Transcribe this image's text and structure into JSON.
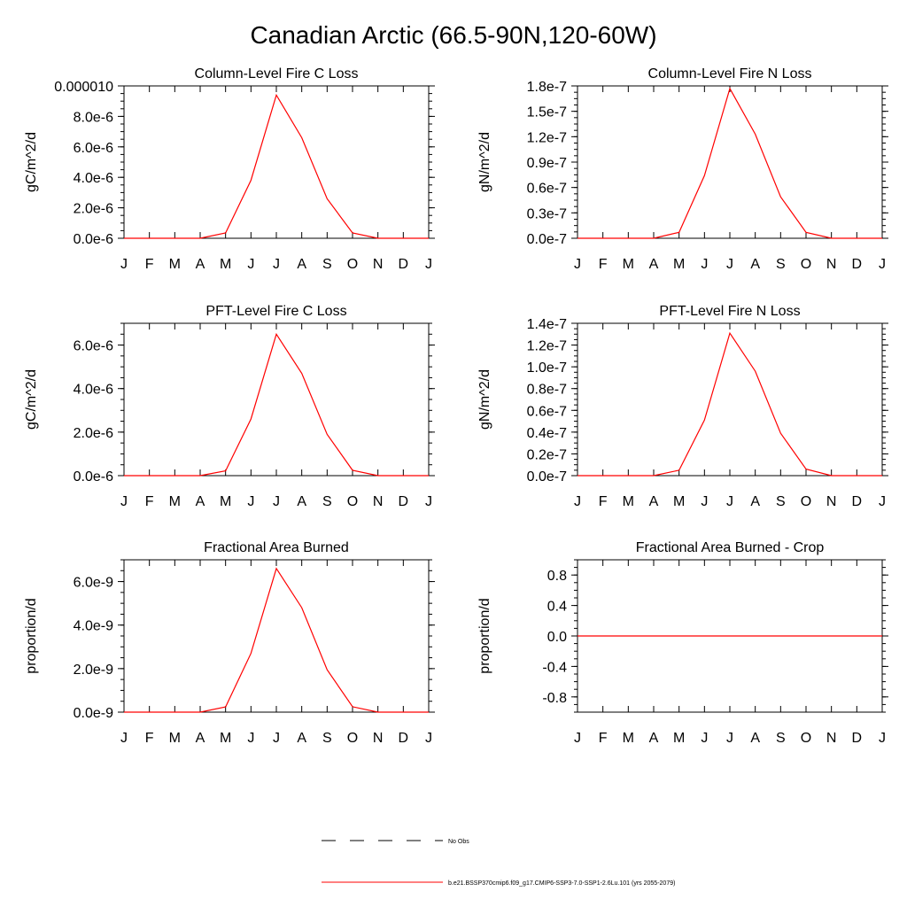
{
  "figure": {
    "title": "Canadian Arctic (66.5-90N,120-60W)"
  },
  "chart_data": [
    {
      "type": "line",
      "title": "Column-Level Fire C Loss",
      "ylabel": "gC/m^2/d",
      "x": [
        "J",
        "F",
        "M",
        "A",
        "M",
        "J",
        "J",
        "A",
        "S",
        "O",
        "N",
        "D",
        "J"
      ],
      "ylim": [
        0,
        1e-05
      ],
      "yticks": [
        0,
        2e-06,
        4e-06,
        6e-06,
        8e-06,
        1e-05
      ],
      "ytick_labels": [
        "0.0e-6",
        "2.0e-6",
        "4.0e-6",
        "6.0e-6",
        "8.0e-6",
        "0.000010"
      ],
      "series": [
        {
          "name": "b.e21.BSSP370cmip6.f09_g17.CMIP6-SSP3-7.0-SSP1-2.6Lu.101 (yrs 2055-2079)",
          "color": "#ff0000",
          "values": [
            0,
            0,
            0,
            0,
            3.5e-07,
            3.8e-06,
            9.4e-06,
            6.6e-06,
            2.6e-06,
            3.5e-07,
            0,
            0,
            0
          ]
        }
      ]
    },
    {
      "type": "line",
      "title": "Column-Level Fire N Loss",
      "ylabel": "gN/m^2/d",
      "x": [
        "J",
        "F",
        "M",
        "A",
        "M",
        "J",
        "J",
        "A",
        "S",
        "O",
        "N",
        "D",
        "J"
      ],
      "ylim": [
        0,
        1.8e-07
      ],
      "yticks": [
        0,
        3e-08,
        6e-08,
        9e-08,
        1.2e-07,
        1.5e-07,
        1.8e-07
      ],
      "ytick_labels": [
        "0.0e-7",
        "0.3e-7",
        "0.6e-7",
        "0.9e-7",
        "1.2e-7",
        "1.5e-7",
        "1.8e-7"
      ],
      "series": [
        {
          "name": "b.e21.BSSP370cmip6.f09_g17.CMIP6-SSP3-7.0-SSP1-2.6Lu.101 (yrs 2055-2079)",
          "color": "#ff0000",
          "values": [
            0,
            0,
            0,
            0,
            7e-09,
            7.4e-08,
            1.77e-07,
            1.23e-07,
            4.9e-08,
            7e-09,
            0,
            0,
            0
          ]
        }
      ]
    },
    {
      "type": "line",
      "title": "PFT-Level Fire C Loss",
      "ylabel": "gC/m^2/d",
      "x": [
        "J",
        "F",
        "M",
        "A",
        "M",
        "J",
        "J",
        "A",
        "S",
        "O",
        "N",
        "D",
        "J"
      ],
      "ylim": [
        0,
        7e-06
      ],
      "yticks": [
        0,
        2e-06,
        4e-06,
        6e-06
      ],
      "ytick_labels": [
        "0.0e-6",
        "2.0e-6",
        "4.0e-6",
        "6.0e-6"
      ],
      "series": [
        {
          "name": "b.e21.BSSP370cmip6.f09_g17.CMIP6-SSP3-7.0-SSP1-2.6Lu.101 (yrs 2055-2079)",
          "color": "#ff0000",
          "values": [
            0,
            0,
            0,
            0,
            2.2e-07,
            2.6e-06,
            6.5e-06,
            4.7e-06,
            1.9e-06,
            2.5e-07,
            0,
            0,
            0
          ]
        }
      ]
    },
    {
      "type": "line",
      "title": "PFT-Level Fire N Loss",
      "ylabel": "gN/m^2/d",
      "x": [
        "J",
        "F",
        "M",
        "A",
        "M",
        "J",
        "J",
        "A",
        "S",
        "O",
        "N",
        "D",
        "J"
      ],
      "ylim": [
        0,
        1.4e-07
      ],
      "yticks": [
        0,
        2e-08,
        4e-08,
        6e-08,
        8e-08,
        1e-07,
        1.2e-07,
        1.4e-07
      ],
      "ytick_labels": [
        "0.0e-7",
        "0.2e-7",
        "0.4e-7",
        "0.6e-7",
        "0.8e-7",
        "1.0e-7",
        "1.2e-7",
        "1.4e-7"
      ],
      "series": [
        {
          "name": "b.e21.BSSP370cmip6.f09_g17.CMIP6-SSP3-7.0-SSP1-2.6Lu.101 (yrs 2055-2079)",
          "color": "#ff0000",
          "values": [
            0,
            0,
            0,
            0,
            5e-09,
            5.1e-08,
            1.31e-07,
            9.6e-08,
            3.9e-08,
            6e-09,
            0,
            0,
            0
          ]
        }
      ]
    },
    {
      "type": "line",
      "title": "Fractional Area Burned",
      "ylabel": "proportion/d",
      "x": [
        "J",
        "F",
        "M",
        "A",
        "M",
        "J",
        "J",
        "A",
        "S",
        "O",
        "N",
        "D",
        "J"
      ],
      "ylim": [
        0,
        7e-09
      ],
      "yticks": [
        0,
        2e-09,
        4e-09,
        6e-09
      ],
      "ytick_labels": [
        "0.0e-9",
        "2.0e-9",
        "4.0e-9",
        "6.0e-9"
      ],
      "series": [
        {
          "name": "b.e21.BSSP370cmip6.f09_g17.CMIP6-SSP3-7.0-SSP1-2.6Lu.101 (yrs 2055-2079)",
          "color": "#ff0000",
          "values": [
            0,
            0,
            0,
            0,
            2.4e-10,
            2.7e-09,
            6.6e-09,
            4.8e-09,
            1.95e-09,
            2.5e-10,
            0,
            0,
            0
          ]
        }
      ]
    },
    {
      "type": "line",
      "title": "Fractional Area Burned - Crop",
      "ylabel": "proportion/d",
      "x": [
        "J",
        "F",
        "M",
        "A",
        "M",
        "J",
        "J",
        "A",
        "S",
        "O",
        "N",
        "D",
        "J"
      ],
      "ylim": [
        -1,
        1
      ],
      "yticks": [
        -0.8,
        -0.4,
        0,
        0.4,
        0.8
      ],
      "ytick_labels": [
        "-0.8",
        "-0.4",
        "0.0",
        "0.4",
        "0.8"
      ],
      "series": [
        {
          "name": "b.e21.BSSP370cmip6.f09_g17.CMIP6-SSP3-7.0-SSP1-2.6Lu.101 (yrs 2055-2079)",
          "color": "#ff0000",
          "values": [
            0,
            0,
            0,
            0,
            0,
            0,
            0,
            0,
            0,
            0,
            0,
            0,
            0
          ]
        }
      ]
    }
  ],
  "legend": {
    "placement": "bottom-center",
    "items": [
      {
        "label": "No Obs",
        "color": "#000000",
        "style": "dashed"
      },
      {
        "label": "b.e21.BSSP370cmip6.f09_g17.CMIP6-SSP3-7.0-SSP1-2.6Lu.101 (yrs 2055-2079)",
        "color": "#ff0000",
        "style": "solid"
      }
    ]
  }
}
